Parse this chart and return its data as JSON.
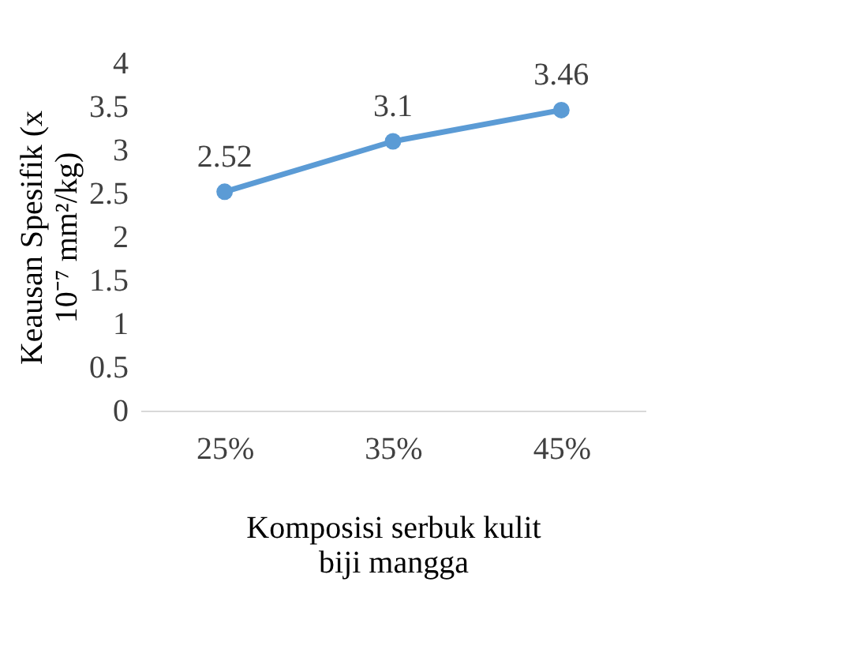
{
  "chart_data": {
    "type": "line",
    "xlabel": "Komposisi serbuk kulit biji mangga",
    "ylabel": "Keausan Spesifik  (x 10⁻⁷ mm²/kg)",
    "categories": [
      "25%",
      "35%",
      "45%"
    ],
    "series": [
      {
        "color": "#5b9bd5",
        "values": [
          2.52,
          3.1,
          3.46
        ]
      }
    ],
    "ylim": [
      0,
      4
    ],
    "yticks": [
      0,
      0.5,
      1,
      1.5,
      2,
      2.5,
      3,
      3.5,
      4
    ],
    "grid": false,
    "legend": false,
    "marker": "circle",
    "line_style": "solid",
    "data_labels": true
  }
}
